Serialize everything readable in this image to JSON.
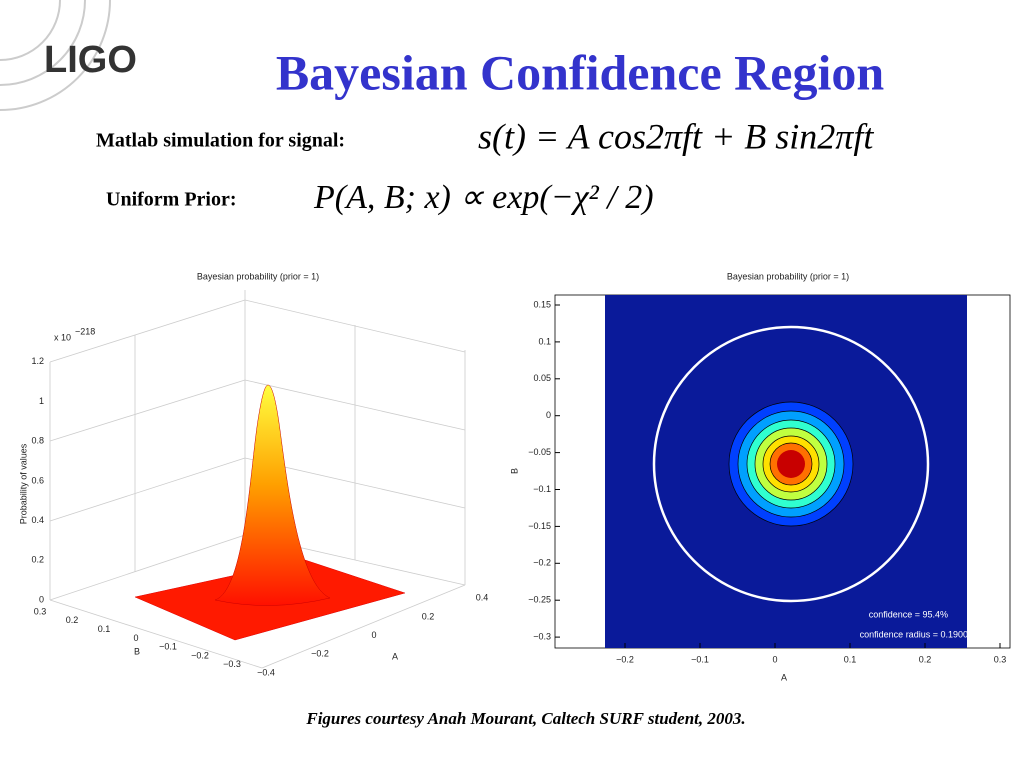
{
  "logo": "LIGO",
  "title": "Bayesian Confidence Region",
  "signal": {
    "label": "Matlab simulation for signal:",
    "formula": "s(t) = A cos2πft + B sin2πft"
  },
  "prior": {
    "label": "Uniform Prior:",
    "formula": "P(A, B; x) ∝ exp(−χ² / 2)"
  },
  "figure_left": {
    "title": "Bayesian probability (prior = 1)",
    "exponent_base": "x 10",
    "exponent": "−218",
    "zlabel": "Probability of values",
    "zticks": [
      "0",
      "0.2",
      "0.4",
      "0.6",
      "0.8",
      "1",
      "1.2"
    ],
    "xlabel": "B",
    "xticks": [
      "0.3",
      "0.2",
      "0.1",
      "0",
      "−0.1",
      "−0.2",
      "−0.3"
    ],
    "ylabel": "A",
    "yticks": [
      "−0.4",
      "−0.2",
      "0",
      "0.2",
      "0.4"
    ]
  },
  "figure_right": {
    "title": "Bayesian probability (prior = 1)",
    "yticks": [
      "0.15",
      "0.1",
      "0.05",
      "0",
      "−0.05",
      "−0.1",
      "−0.15",
      "−0.2",
      "−0.25",
      "−0.3"
    ],
    "xticks": [
      "−0.2",
      "−0.1",
      "0",
      "0.1",
      "0.2",
      "0.3"
    ],
    "xlabel": "A",
    "ylabel": "B",
    "annotations": [
      "confidence = 95.4%",
      "confidence radius = 0.1900"
    ]
  },
  "caption": "Figures courtesy Anah Mourant, Caltech SURF student, 2003."
}
